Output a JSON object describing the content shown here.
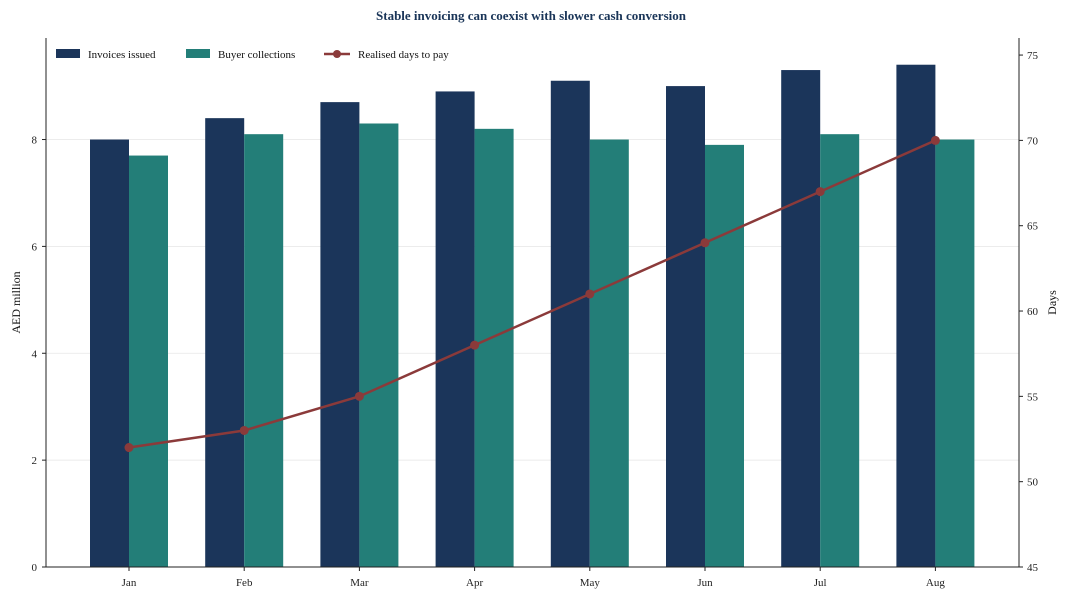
{
  "chart_data": {
    "type": "bar",
    "title": "Stable invoicing can coexist with slower cash conversion",
    "categories": [
      "Jan",
      "Feb",
      "Mar",
      "Apr",
      "May",
      "Jun",
      "Jul",
      "Aug"
    ],
    "series": [
      {
        "name": "Invoices issued",
        "kind": "bar",
        "axis": "left",
        "color": "#1b355a",
        "values": [
          8.0,
          8.4,
          8.7,
          8.9,
          9.1,
          9.0,
          9.3,
          9.4
        ]
      },
      {
        "name": "Buyer collections",
        "kind": "bar",
        "axis": "left",
        "color": "#237e78",
        "values": [
          7.7,
          8.1,
          8.3,
          8.2,
          8.0,
          7.9,
          8.1,
          8.0
        ]
      },
      {
        "name": "Realised days to pay",
        "kind": "line",
        "axis": "right",
        "color": "#8b3a3a",
        "values": [
          52,
          53,
          55,
          58,
          61,
          64,
          67,
          70
        ]
      }
    ],
    "ylabel": "AED million",
    "ylim": [
      0,
      9.9
    ],
    "yticks": [
      "0",
      "2",
      "4",
      "6",
      "8"
    ],
    "y2label": "Days",
    "y2lim": [
      45,
      76
    ],
    "y2ticks": [
      "45",
      "50",
      "55",
      "60",
      "65",
      "70",
      "75"
    ],
    "grid": true,
    "legend_position": "top-left"
  }
}
